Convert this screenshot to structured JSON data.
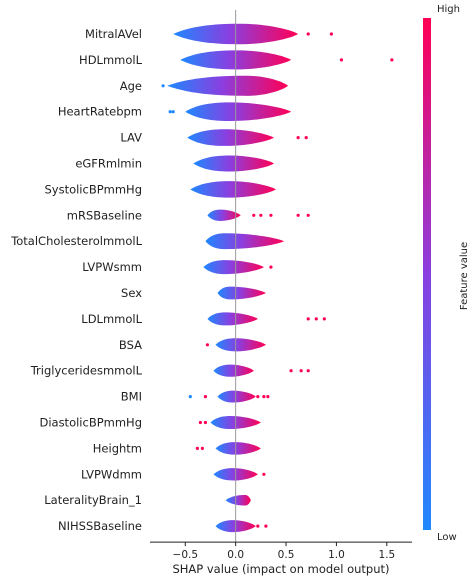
{
  "chart_data": {
    "type": "violin",
    "xlabel": "SHAP value (impact on model output)",
    "xlim": [
      -0.85,
      1.75
    ],
    "xticks": [
      "−0.5",
      "0.0",
      "0.5",
      "1.0",
      "1.5"
    ],
    "xtick_values": [
      -0.5,
      0.0,
      0.5,
      1.0,
      1.5
    ],
    "colorbar": {
      "high_label": "High",
      "low_label": "Low",
      "title": "Feature value",
      "low_color": "#1e88ff",
      "high_color": "#ff0055"
    },
    "features": [
      {
        "name": "MitralAVel",
        "min": -0.62,
        "max": 0.62,
        "peak": 0.05,
        "outliers": [
          0.72,
          0.95
        ]
      },
      {
        "name": "HDLmmolL",
        "min": -0.55,
        "max": 0.55,
        "peak": 0.02,
        "outliers": [
          1.05,
          1.55
        ]
      },
      {
        "name": "Age",
        "min": -0.68,
        "max": 0.52,
        "peak": 0.12,
        "outliers": [
          -0.72
        ]
      },
      {
        "name": "HeartRatebpm",
        "min": -0.5,
        "max": 0.55,
        "peak": -0.05,
        "outliers": [
          -0.62,
          -0.65
        ]
      },
      {
        "name": "LAV",
        "min": -0.48,
        "max": 0.38,
        "peak": -0.1,
        "outliers": [
          0.62,
          0.7
        ]
      },
      {
        "name": "eGFRmlmin",
        "min": -0.42,
        "max": 0.38,
        "peak": -0.05,
        "outliers": []
      },
      {
        "name": "SystolicBPmmHg",
        "min": -0.45,
        "max": 0.4,
        "peak": -0.05,
        "outliers": []
      },
      {
        "name": "mRSBaseline",
        "min": -0.28,
        "max": 0.05,
        "peak": -0.15,
        "outliers": [
          0.18,
          0.25,
          0.35,
          0.62,
          0.72
        ]
      },
      {
        "name": "TotalCholesterolmmolL",
        "min": -0.3,
        "max": 0.48,
        "peak": -0.1,
        "outliers": []
      },
      {
        "name": "LVPWsmm",
        "min": -0.32,
        "max": 0.28,
        "peak": -0.1,
        "outliers": [
          0.35
        ]
      },
      {
        "name": "Sex",
        "min": -0.18,
        "max": 0.3,
        "peak": -0.05,
        "outliers": []
      },
      {
        "name": "LDLmmolL",
        "min": -0.28,
        "max": 0.22,
        "peak": -0.1,
        "outliers": [
          0.72,
          0.8,
          0.88
        ]
      },
      {
        "name": "BSA",
        "min": -0.2,
        "max": 0.3,
        "peak": 0.0,
        "outliers": [
          -0.28
        ]
      },
      {
        "name": "TriglyceridesmmolL",
        "min": -0.22,
        "max": 0.18,
        "peak": -0.05,
        "outliers": [
          0.55,
          0.65,
          0.72
        ]
      },
      {
        "name": "BMI",
        "min": -0.18,
        "max": 0.2,
        "peak": -0.02,
        "outliers": [
          -0.45,
          -0.3,
          0.22,
          0.28,
          0.32
        ]
      },
      {
        "name": "DiastolicBPmmHg",
        "min": -0.25,
        "max": 0.25,
        "peak": -0.05,
        "outliers": [
          -0.35,
          -0.3
        ]
      },
      {
        "name": "Heightm",
        "min": -0.2,
        "max": 0.25,
        "peak": 0.0,
        "outliers": [
          -0.38,
          -0.33
        ]
      },
      {
        "name": "LVPWdmm",
        "min": -0.22,
        "max": 0.22,
        "peak": -0.02,
        "outliers": [
          0.28
        ]
      },
      {
        "name": "LateralityBrain_1",
        "min": -0.1,
        "max": 0.15,
        "peak": 0.1,
        "outliers": []
      },
      {
        "name": "NIHSSBaseline",
        "min": -0.2,
        "max": 0.2,
        "peak": -0.02,
        "outliers": [
          0.22,
          0.3
        ]
      }
    ]
  }
}
